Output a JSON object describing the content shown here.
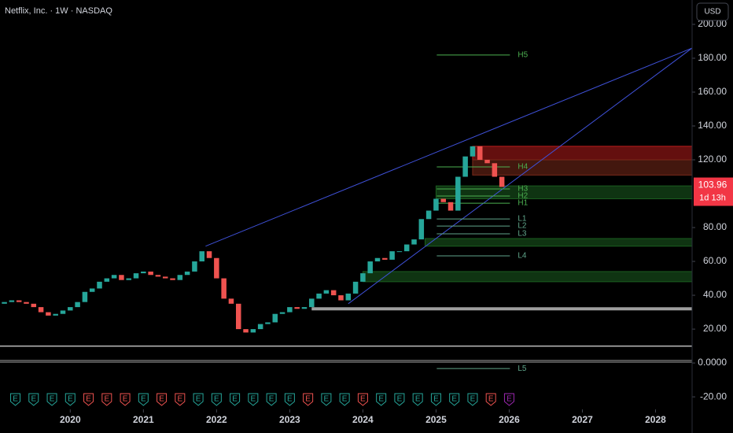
{
  "chart_data": {
    "type": "candlestick",
    "title": "Netflix, Inc. · 1W · NASDAQ",
    "currency": "USD",
    "price": 103.96,
    "countdown": "1d 13h",
    "x": [
      2019.0,
      2019.1,
      2019.2,
      2019.3,
      2019.4,
      2019.5,
      2019.6,
      2019.7,
      2019.8,
      2019.9,
      2020.0,
      2020.1,
      2020.2,
      2020.3,
      2020.4,
      2020.5,
      2020.6,
      2020.7,
      2020.8,
      2020.9,
      2021.0,
      2021.1,
      2021.2,
      2021.3,
      2021.4,
      2021.5,
      2021.6,
      2021.7,
      2021.8,
      2021.9,
      2022.0,
      2022.1,
      2022.2,
      2022.3,
      2022.4,
      2022.5,
      2022.6,
      2022.7,
      2022.8,
      2022.9,
      2023.0,
      2023.1,
      2023.2,
      2023.3,
      2023.4,
      2023.5,
      2023.6,
      2023.7,
      2023.8,
      2023.9,
      2024.0,
      2024.1,
      2024.2,
      2024.3,
      2024.4,
      2024.5,
      2024.6,
      2024.7,
      2024.8,
      2024.9,
      2025.0,
      2025.1,
      2025.2,
      2025.3,
      2025.4,
      2025.5,
      2025.6,
      2025.7,
      2025.8,
      2025.9
    ],
    "values": [
      35,
      36,
      37,
      36,
      35,
      33,
      30,
      28,
      29,
      31,
      33,
      36,
      42,
      44,
      48,
      50,
      52,
      49,
      50,
      53,
      54,
      52,
      51,
      50,
      49,
      52,
      54,
      60,
      66,
      62,
      50,
      38,
      35,
      20,
      18,
      20,
      23,
      24,
      29,
      30,
      33,
      32,
      33,
      38,
      41,
      43,
      40,
      37,
      41,
      48,
      53,
      60,
      62,
      61,
      66,
      66,
      70,
      73,
      85,
      90,
      97,
      95,
      90,
      110,
      122,
      128,
      120,
      118,
      110,
      104
    ],
    "up_color": "#26a69a",
    "down_color": "#ef5350",
    "xlim": [
      2019.04,
      2028.5
    ],
    "ylim": [
      -27.4,
      214.4
    ],
    "xticks": [
      2020,
      2021,
      2022,
      2023,
      2024,
      2025,
      2026,
      2027,
      2028
    ],
    "yticks": [
      {
        "value": 200,
        "label": "200.00"
      },
      {
        "value": 180,
        "label": "180.00"
      },
      {
        "value": 160,
        "label": "160.00"
      },
      {
        "value": 140,
        "label": "140.00"
      },
      {
        "value": 120,
        "label": "120.00"
      },
      {
        "value": 80,
        "label": "80.00"
      },
      {
        "value": 60,
        "label": "60.00"
      },
      {
        "value": 40,
        "label": "40.00"
      },
      {
        "value": 20,
        "label": "20.00"
      },
      {
        "value": 0,
        "label": "0.0000"
      },
      {
        "value": -20,
        "label": "-20.00"
      }
    ],
    "levels": [
      {
        "label": "H5",
        "value": 181.9
      },
      {
        "label": "H4",
        "value": 115.8
      },
      {
        "label": "H3",
        "value": 102.8
      },
      {
        "label": "H2",
        "value": 98.6
      },
      {
        "label": "H1",
        "value": 94.4
      },
      {
        "label": "L1",
        "value": 85.1
      },
      {
        "label": "L2",
        "value": 80.9
      },
      {
        "label": "L3",
        "value": 76.3
      },
      {
        "label": "L4",
        "value": 63.3
      },
      {
        "label": "L5",
        "value": -3.3
      }
    ],
    "level_x": [
      2025.01,
      2026.01
    ],
    "zones": [
      {
        "range": [
          120,
          128
        ],
        "color": "#b71c1c",
        "x": 2025.5
      },
      {
        "range": [
          111,
          120
        ],
        "color": "#7a2a1a",
        "x": 2025.5
      },
      {
        "range": [
          97,
          104.6
        ],
        "color": "#1b5e20",
        "x": 2025.0
      },
      {
        "range": [
          69,
          73.5
        ],
        "color": "#1b5e20",
        "x": 2024.85
      },
      {
        "range": [
          48,
          54
        ],
        "color": "#1b5e20",
        "x": 2024.0
      }
    ],
    "hlines": [
      {
        "value": 32,
        "x": 2023.3,
        "color": "#9e9e9e",
        "width": 4
      },
      {
        "value": 10,
        "x": 2019.04,
        "color": "#bdbdbd",
        "width": 1.5
      },
      {
        "value": 1.5,
        "x": 2019.04,
        "color": "#9e9e9e",
        "width": 1
      },
      {
        "value": 0.5,
        "x": 2019.04,
        "color": "#9e9e9e",
        "width": 1
      }
    ],
    "trendlines": [
      {
        "points": [
          [
            2021.85,
            69
          ],
          [
            2028.5,
            186
          ]
        ],
        "color": "#3f51d9"
      },
      {
        "points": [
          [
            2023.8,
            35
          ],
          [
            2028.5,
            186
          ]
        ],
        "color": "#3f51d9"
      }
    ],
    "earnings": {
      "label": "E",
      "x": [
        2019.25,
        2019.5,
        2019.75,
        2020.0,
        2020.25,
        2020.5,
        2020.75,
        2021.0,
        2021.25,
        2021.5,
        2021.75,
        2022.0,
        2022.25,
        2022.5,
        2022.75,
        2023.0,
        2023.25,
        2023.5,
        2023.75,
        2024.0,
        2024.25,
        2024.5,
        2024.75,
        2025.0,
        2025.25,
        2025.5,
        2025.75,
        2026.0
      ],
      "colors": [
        "#26a69a",
        "#26a69a",
        "#26a69a",
        "#26a69a",
        "#ef5350",
        "#ef5350",
        "#ef5350",
        "#26a69a",
        "#ef5350",
        "#ef5350",
        "#26a69a",
        "#26a69a",
        "#26a69a",
        "#26a69a",
        "#26a69a",
        "#26a69a",
        "#ef5350",
        "#26a69a",
        "#26a69a",
        "#ef5350",
        "#26a69a",
        "#26a69a",
        "#26a69a",
        "#26a69a",
        "#26a69a",
        "#26a69a",
        "#ef5350",
        "#9c27b0"
      ]
    }
  }
}
